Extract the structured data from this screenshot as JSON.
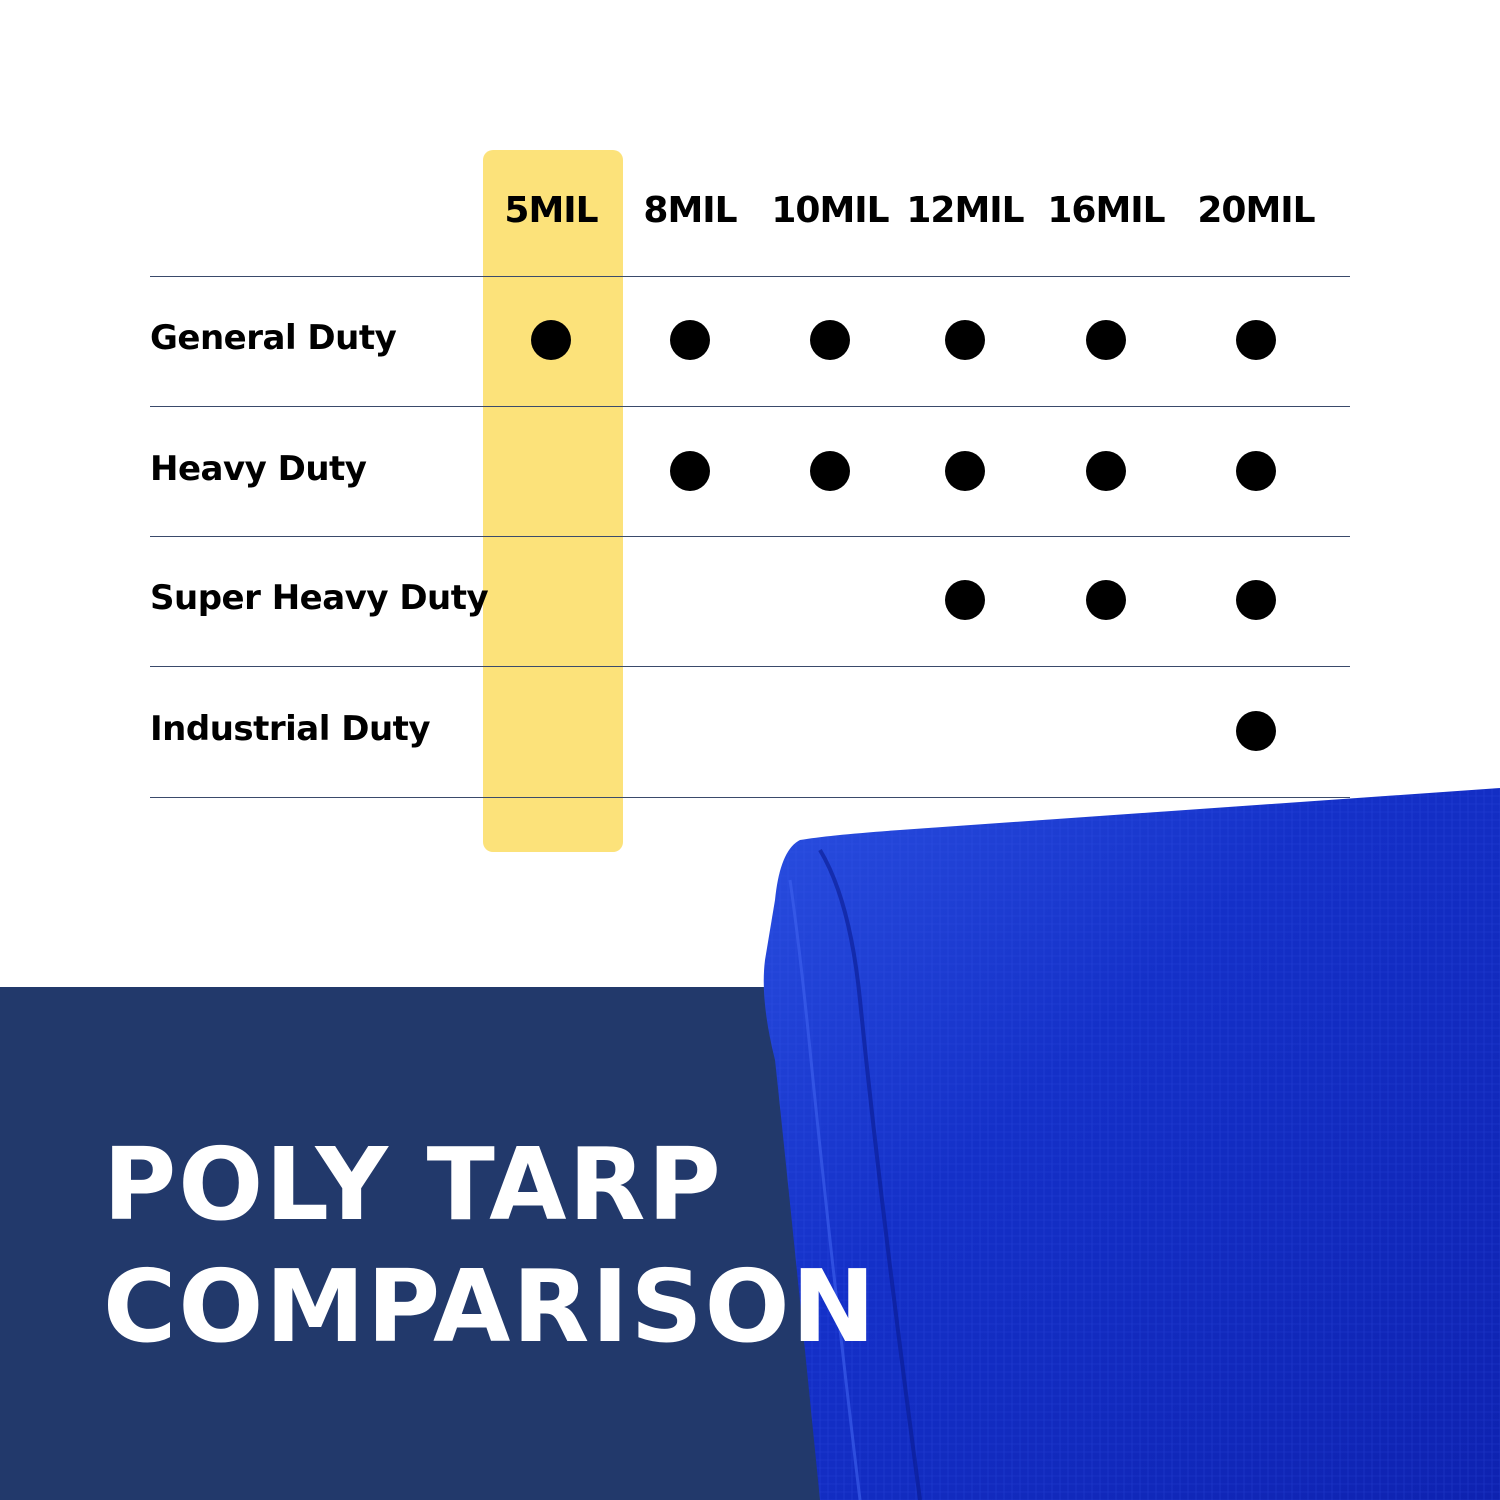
{
  "columns": [
    "5MIL",
    "8MIL",
    "10MIL",
    "12MIL",
    "16MIL",
    "20MIL"
  ],
  "highlighted_column": "5MIL",
  "rows": [
    {
      "label": "General Duty",
      "marks": [
        true,
        true,
        true,
        true,
        true,
        true
      ]
    },
    {
      "label": "Heavy Duty",
      "marks": [
        false,
        true,
        true,
        true,
        true,
        true
      ]
    },
    {
      "label": "Super Heavy Duty",
      "marks": [
        false,
        false,
        false,
        true,
        true,
        true
      ]
    },
    {
      "label": "Industrial Duty",
      "marks": [
        false,
        false,
        false,
        false,
        false,
        true
      ]
    }
  ],
  "title": {
    "line1": "POLY TARP",
    "line2": "COMPARISON"
  },
  "colors": {
    "highlight": "#FCE27A",
    "band": "#22396B",
    "tarp": "#1530C8",
    "dot": "#000000"
  }
}
